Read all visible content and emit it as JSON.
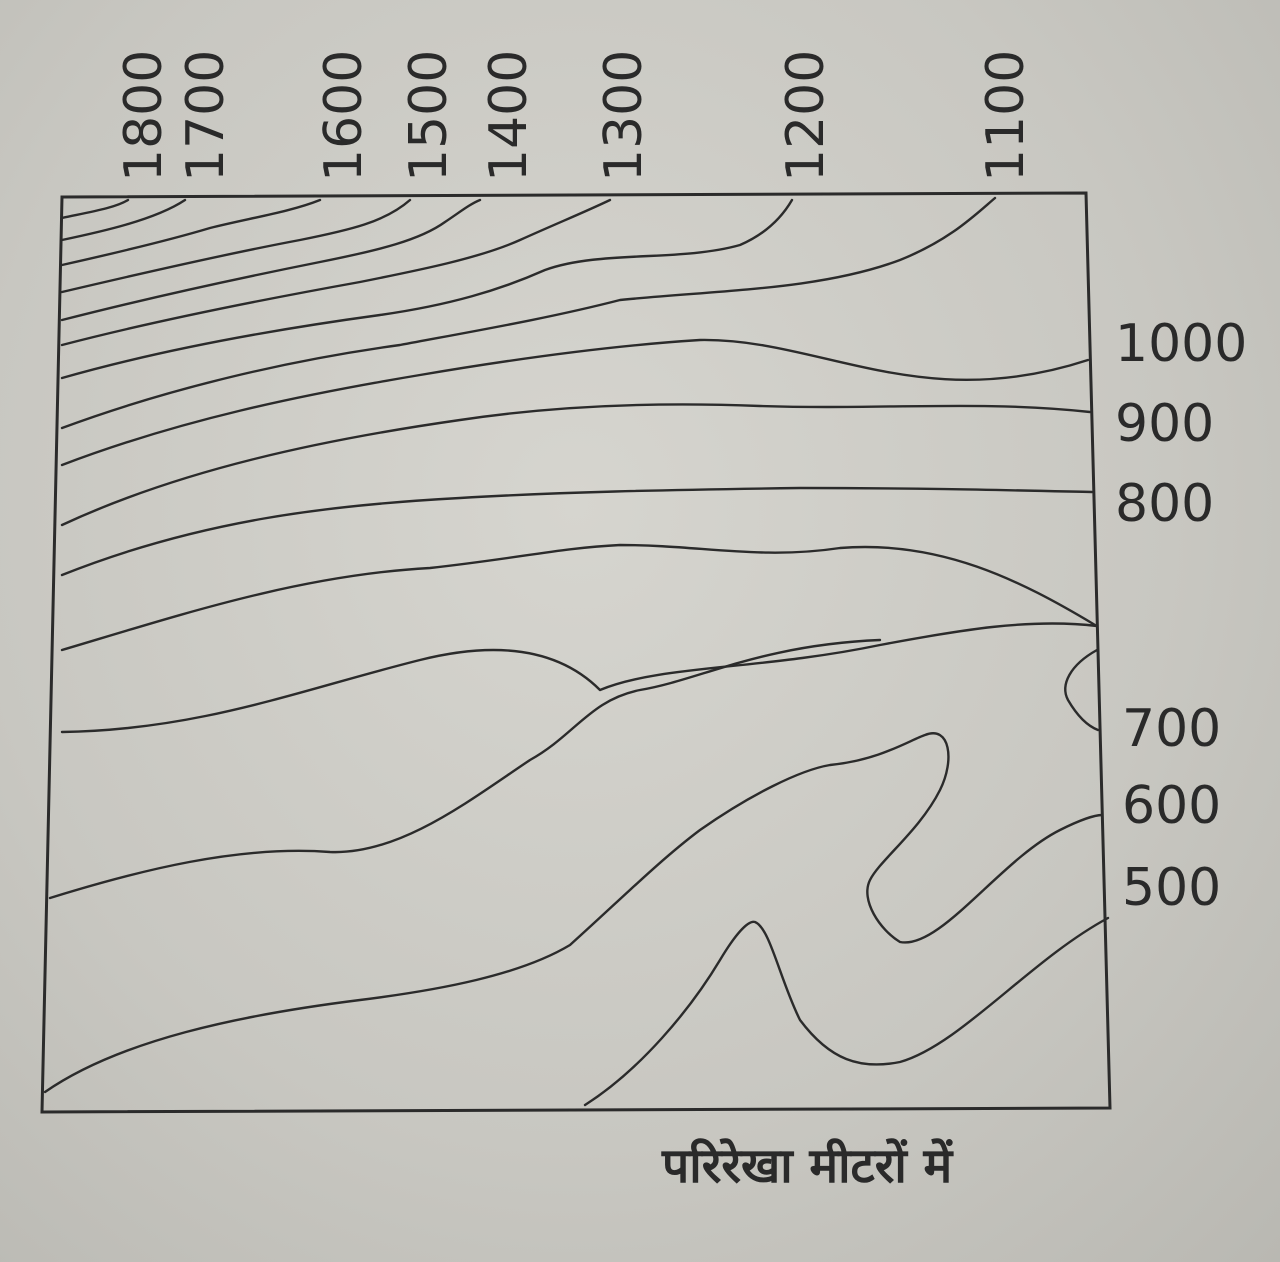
{
  "map": {
    "top_labels": [
      "1800",
      "1700",
      "1600",
      "1500",
      "1400",
      "1300",
      "1200",
      "1100"
    ],
    "right_labels": [
      "1000",
      "900",
      "800",
      "700",
      "600",
      "500"
    ],
    "caption": "परिरेखा मीटरों में",
    "colors": {
      "line": "#2b2b2b",
      "paper": "#cfcec8",
      "text": "#2a2a2a"
    }
  }
}
